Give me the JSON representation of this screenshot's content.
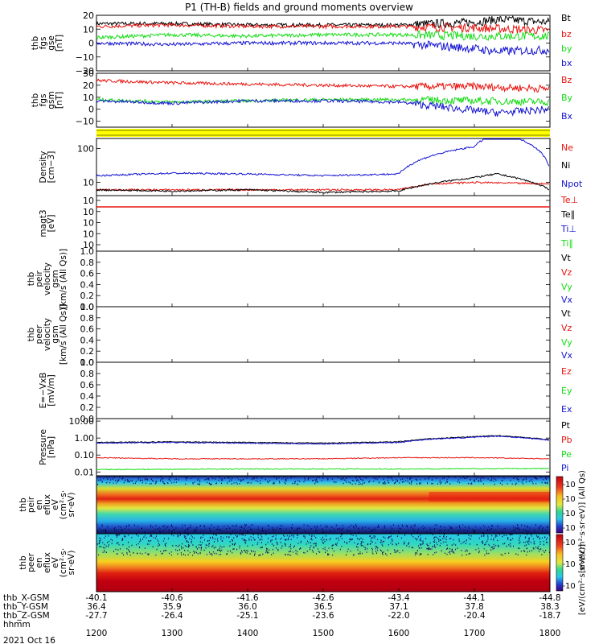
{
  "title": "P1 (TH-B) fields and ground moments overview",
  "colors": {
    "black": "#000000",
    "red": "#e8140f",
    "green": "#14dc14",
    "blue": "#1414d2",
    "yellow": "#ffff00"
  },
  "chart_data": {
    "type": "line",
    "x_axis": {
      "label": "hhmm",
      "ticks": [
        "1200",
        "1300",
        "1400",
        "1500",
        "1600",
        "1700",
        "1800"
      ],
      "date": "2021 Oct 16",
      "ephemeris": [
        {
          "name": "thb_X-GSM",
          "values": [
            "-40.1",
            "-40.6",
            "-41.6",
            "-42.6",
            "-43.4",
            "-44.1",
            "-44.8"
          ]
        },
        {
          "name": "thb_Y-GSM",
          "values": [
            "36.4",
            "35.9",
            "36.0",
            "36.5",
            "37.1",
            "37.8",
            "38.3"
          ]
        },
        {
          "name": "thb_Z-GSM",
          "values": [
            "-27.7",
            "-26.4",
            "-25.1",
            "-23.6",
            "-22.0",
            "-20.4",
            "-18.7"
          ]
        }
      ]
    },
    "panels": [
      {
        "id": "fgs_gse",
        "ylabel": [
          "thb",
          "fgs",
          "gse",
          "[nT]"
        ],
        "yticks": [
          "20",
          "10",
          "0",
          "−10",
          "−20"
        ],
        "ylim": [
          -20,
          20
        ],
        "series": [
          {
            "name": "Bt",
            "color": "#000000",
            "points": [
              [
                1200,
                14
              ],
              [
                1300,
                14
              ],
              [
                1400,
                13
              ],
              [
                1500,
                13
              ],
              [
                1600,
                13
              ],
              [
                1700,
                15
              ],
              [
                1730,
                17
              ],
              [
                1800,
                15
              ]
            ]
          },
          {
            "name": "bz",
            "color": "#e8140f",
            "points": [
              [
                1200,
                12
              ],
              [
                1300,
                13
              ],
              [
                1400,
                12
              ],
              [
                1500,
                12
              ],
              [
                1600,
                12
              ],
              [
                1700,
                11
              ],
              [
                1800,
                9
              ]
            ]
          },
          {
            "name": "by",
            "color": "#14dc14",
            "points": [
              [
                1200,
                4
              ],
              [
                1300,
                6
              ],
              [
                1400,
                5
              ],
              [
                1500,
                6
              ],
              [
                1600,
                6
              ],
              [
                1700,
                5
              ],
              [
                1800,
                5
              ]
            ]
          },
          {
            "name": "bx",
            "color": "#1414d2",
            "points": [
              [
                1200,
                0
              ],
              [
                1300,
                -1
              ],
              [
                1400,
                0
              ],
              [
                1500,
                0
              ],
              [
                1600,
                0
              ],
              [
                1700,
                -4
              ],
              [
                1730,
                -6
              ],
              [
                1800,
                -5
              ]
            ]
          }
        ]
      },
      {
        "id": "fgs_gsm",
        "ylabel": [
          "thb",
          "fgs",
          "gsm",
          "[nT]"
        ],
        "yticks": [
          "30",
          "20",
          "10",
          "0",
          "−10"
        ],
        "ylim": [
          -15,
          30
        ],
        "series": [
          {
            "name": "Bz",
            "color": "#e8140f",
            "points": [
              [
                1200,
                24
              ],
              [
                1300,
                22
              ],
              [
                1400,
                21
              ],
              [
                1500,
                20
              ],
              [
                1600,
                19
              ],
              [
                1700,
                19
              ],
              [
                1800,
                17
              ]
            ]
          },
          {
            "name": "By",
            "color": "#14dc14",
            "points": [
              [
                1200,
                8
              ],
              [
                1300,
                6
              ],
              [
                1400,
                7
              ],
              [
                1500,
                8
              ],
              [
                1600,
                8
              ],
              [
                1700,
                7
              ],
              [
                1800,
                6
              ]
            ]
          },
          {
            "name": "Bx",
            "color": "#1414d2",
            "points": [
              [
                1200,
                7
              ],
              [
                1300,
                5
              ],
              [
                1400,
                7
              ],
              [
                1500,
                7
              ],
              [
                1600,
                6
              ],
              [
                1700,
                -1
              ],
              [
                1730,
                -3
              ],
              [
                1800,
                0
              ]
            ]
          }
        ]
      },
      {
        "id": "flag_bar",
        "series": [
          {
            "name": "",
            "color": "#ffff00",
            "points": []
          }
        ]
      },
      {
        "id": "density",
        "ylabel": [
          "Density",
          "[cm−3]"
        ],
        "yticks": [
          "100",
          "10"
        ],
        "scale": "log",
        "ylim": [
          4,
          200
        ],
        "series": [
          {
            "name": "Ne",
            "color": "#e8140f",
            "points": [
              [
                1200,
                6
              ],
              [
                1300,
                6
              ],
              [
                1400,
                6
              ],
              [
                1500,
                6
              ],
              [
                1600,
                6
              ],
              [
                1640,
                9
              ],
              [
                1700,
                10
              ],
              [
                1800,
                9
              ]
            ]
          },
          {
            "name": "Ni",
            "color": "#000000",
            "points": [
              [
                1200,
                6
              ],
              [
                1300,
                5.5
              ],
              [
                1400,
                6
              ],
              [
                1500,
                5
              ],
              [
                1600,
                5.5
              ],
              [
                1700,
                14
              ],
              [
                1730,
                18
              ],
              [
                1800,
                6
              ]
            ]
          },
          {
            "name": "Npot",
            "color": "#1414d2",
            "points": [
              [
                1200,
                16
              ],
              [
                1300,
                19
              ],
              [
                1400,
                18
              ],
              [
                1500,
                16
              ],
              [
                1600,
                18
              ],
              [
                1640,
                60
              ],
              [
                1700,
                120
              ],
              [
                1720,
                250
              ],
              [
                1750,
                250
              ],
              [
                1800,
                26
              ]
            ]
          }
        ]
      },
      {
        "id": "temperature",
        "ylabel": [
          "magt3",
          "[eV]"
        ],
        "yticks": [
          "10",
          "10",
          "10",
          "10",
          "10"
        ],
        "scale": "log",
        "series": [
          {
            "name": "Te⊥",
            "color": "#e8140f",
            "points": [
              [
                1200,
                9.5
              ],
              [
                1800,
                9.5
              ]
            ]
          },
          {
            "name": "Te∥",
            "color": "#000000",
            "points": []
          },
          {
            "name": "Ti⊥",
            "color": "#1414d2",
            "points": []
          },
          {
            "name": "Ti∥",
            "color": "#14dc14",
            "points": []
          }
        ]
      },
      {
        "id": "peir_velocity",
        "ylabel": [
          "thb",
          "peir",
          "velocity",
          "gsm",
          "[km/s (All Qs)]"
        ],
        "yticks": [
          "1.0",
          "0.8",
          "0.6",
          "0.4",
          "0.2",
          "0.0"
        ],
        "ylim": [
          0,
          1
        ],
        "series": [
          {
            "name": "Vt",
            "color": "#000000",
            "points": []
          },
          {
            "name": "Vz",
            "color": "#e8140f",
            "points": []
          },
          {
            "name": "Vy",
            "color": "#14dc14",
            "points": []
          },
          {
            "name": "Vx",
            "color": "#1414d2",
            "points": []
          }
        ]
      },
      {
        "id": "peer_velocity",
        "ylabel": [
          "thb",
          "peer",
          "velocity",
          "gsm",
          "[km/s (All Qs)]"
        ],
        "yticks": [
          "1.0",
          "0.8",
          "0.6",
          "0.4",
          "0.2",
          "0.0"
        ],
        "ylim": [
          0,
          1
        ],
        "series": [
          {
            "name": "Vt",
            "color": "#000000",
            "points": []
          },
          {
            "name": "Vz",
            "color": "#e8140f",
            "points": []
          },
          {
            "name": "Vy",
            "color": "#14dc14",
            "points": []
          },
          {
            "name": "Vx",
            "color": "#1414d2",
            "points": []
          }
        ]
      },
      {
        "id": "efield",
        "ylabel": [
          "E=−VxB",
          "[mV/m]"
        ],
        "yticks": [
          "1.0",
          "0.8",
          "0.6",
          "0.4",
          "0.2",
          "0.0"
        ],
        "ylim": [
          0,
          1
        ],
        "series": [
          {
            "name": "Ez",
            "color": "#e8140f",
            "points": []
          },
          {
            "name": "Ey",
            "color": "#14dc14",
            "points": []
          },
          {
            "name": "Ex",
            "color": "#1414d2",
            "points": []
          }
        ]
      },
      {
        "id": "pressure",
        "ylabel": [
          "Pressure",
          "[nPa]"
        ],
        "yticks": [
          "10.00",
          "1.00",
          "0.10",
          "0.01"
        ],
        "scale": "log",
        "ylim": [
          0.006,
          14
        ],
        "series": [
          {
            "name": "Pt",
            "color": "#000000",
            "points": [
              [
                1200,
                0.55
              ],
              [
                1300,
                0.6
              ],
              [
                1400,
                0.55
              ],
              [
                1500,
                0.5
              ],
              [
                1600,
                0.6
              ],
              [
                1640,
                0.9
              ],
              [
                1700,
                1.2
              ],
              [
                1730,
                1.4
              ],
              [
                1800,
                0.8
              ]
            ]
          },
          {
            "name": "Pb",
            "color": "#e8140f",
            "points": [
              [
                1200,
                0.07
              ],
              [
                1300,
                0.06
              ],
              [
                1400,
                0.06
              ],
              [
                1500,
                0.06
              ],
              [
                1600,
                0.07
              ],
              [
                1700,
                0.07
              ],
              [
                1800,
                0.06
              ]
            ]
          },
          {
            "name": "Pe",
            "color": "#14dc14",
            "points": [
              [
                1200,
                0.014
              ],
              [
                1400,
                0.015
              ],
              [
                1600,
                0.015
              ],
              [
                1800,
                0.016
              ]
            ]
          },
          {
            "name": "Pi",
            "color": "#1414d2",
            "points": [
              [
                1200,
                0.5
              ],
              [
                1300,
                0.55
              ],
              [
                1400,
                0.5
              ],
              [
                1500,
                0.45
              ],
              [
                1600,
                0.55
              ],
              [
                1640,
                0.85
              ],
              [
                1700,
                1.1
              ],
              [
                1730,
                1.3
              ],
              [
                1800,
                0.75
              ]
            ]
          }
        ]
      },
      {
        "id": "peir_spectrogram",
        "type": "heatmap",
        "ylabel": [
          "thb",
          "peir",
          "en",
          "eflux",
          "eV",
          "(cm²·s·",
          "sr·eV)"
        ],
        "yticks": [
          "10000",
          "1000",
          "100",
          "10"
        ],
        "colorbar_label": "[eV/(cm²·s·sr·eV)] (All Qs)",
        "colorbar_ticks": [
          "10",
          "10",
          "10",
          "10"
        ]
      },
      {
        "id": "peer_spectrogram",
        "type": "heatmap",
        "ylabel": [
          "thb",
          "peer",
          "en",
          "eflux",
          "eV",
          "(cm²·s·",
          "sr·eV)"
        ],
        "yticks": [
          "10000",
          "1000",
          "100",
          "10"
        ],
        "colorbar_label": "[eV/(cm²·s·sr·eV)]",
        "colorbar_ticks": [
          "10",
          "10",
          "10"
        ]
      }
    ]
  }
}
